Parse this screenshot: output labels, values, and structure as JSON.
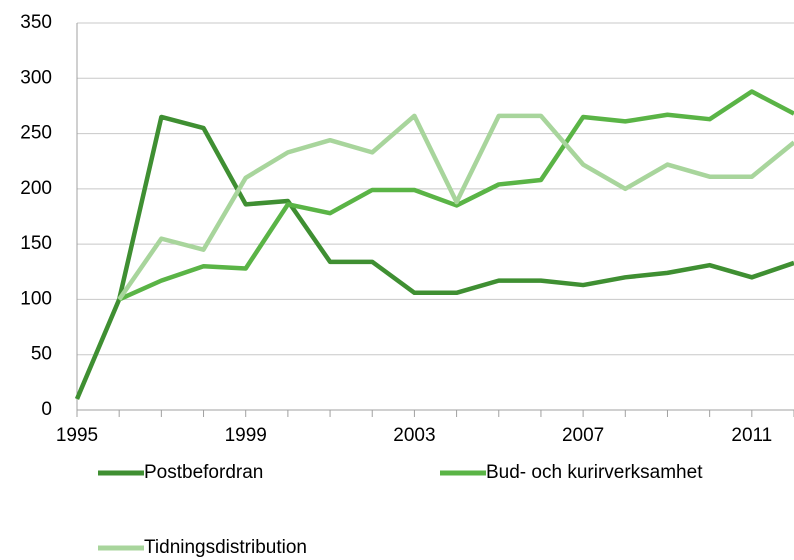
{
  "chart_data": {
    "type": "line",
    "x": [
      1995,
      1996,
      1997,
      1998,
      1999,
      2000,
      2001,
      2002,
      2003,
      2004,
      2005,
      2006,
      2007,
      2008,
      2009,
      2010,
      2011,
      2012
    ],
    "series": [
      {
        "name": "Postbefordran",
        "color": "#3f8f32",
        "values": [
          10,
          100,
          265,
          255,
          186,
          189,
          134,
          134,
          106,
          106,
          117,
          117,
          113,
          120,
          124,
          131,
          120,
          133
        ]
      },
      {
        "name": "Bud- och kurirverksamhet",
        "color": "#5ab446",
        "values": [
          null,
          100,
          117,
          130,
          128,
          186,
          178,
          199,
          199,
          185,
          204,
          208,
          265,
          261,
          267,
          263,
          288,
          268
        ]
      },
      {
        "name": "Tidningsdistribution",
        "color": "#a8d59c",
        "values": [
          null,
          100,
          155,
          145,
          210,
          233,
          244,
          233,
          266,
          188,
          266,
          266,
          222,
          200,
          222,
          211,
          211,
          242
        ]
      }
    ],
    "xlim": [
      1995,
      2012
    ],
    "xticks": [
      1995,
      1999,
      2003,
      2007,
      2011
    ],
    "ylim": [
      0,
      350
    ],
    "yticks": [
      0,
      50,
      100,
      150,
      200,
      250,
      300,
      350
    ],
    "grid": true
  }
}
